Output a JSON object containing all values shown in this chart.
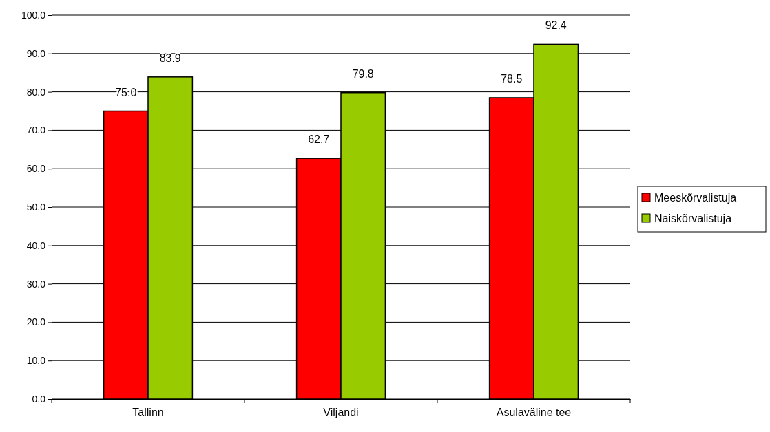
{
  "chart_data": {
    "type": "bar",
    "categories": [
      "Tallinn",
      "Viljandi",
      "Asulaväline tee"
    ],
    "series": [
      {
        "name": "Meeskõrvalistuja",
        "color": "#ff0000",
        "values": [
          75.0,
          62.7,
          78.5
        ],
        "value_labels": [
          "75.0",
          "62.7",
          "78.5"
        ]
      },
      {
        "name": "Naiskõrvalistuja",
        "color": "#99cc00",
        "values": [
          83.9,
          79.8,
          92.4
        ],
        "value_labels": [
          "83.9",
          "79.8",
          "92.4"
        ]
      }
    ],
    "ylim": [
      0,
      100
    ],
    "yticks": [
      {
        "value": 0,
        "label": "0.0"
      },
      {
        "value": 10,
        "label": "10.0"
      },
      {
        "value": 20,
        "label": "20.0"
      },
      {
        "value": 30,
        "label": "30.0"
      },
      {
        "value": 40,
        "label": "40.0"
      },
      {
        "value": 50,
        "label": "50.0"
      },
      {
        "value": 60,
        "label": "60.0"
      },
      {
        "value": 70,
        "label": "70.0"
      },
      {
        "value": 80,
        "label": "80.0"
      },
      {
        "value": 90,
        "label": "90.0"
      },
      {
        "value": 100,
        "label": "100.0"
      }
    ],
    "grid": "y",
    "legend": "right"
  }
}
